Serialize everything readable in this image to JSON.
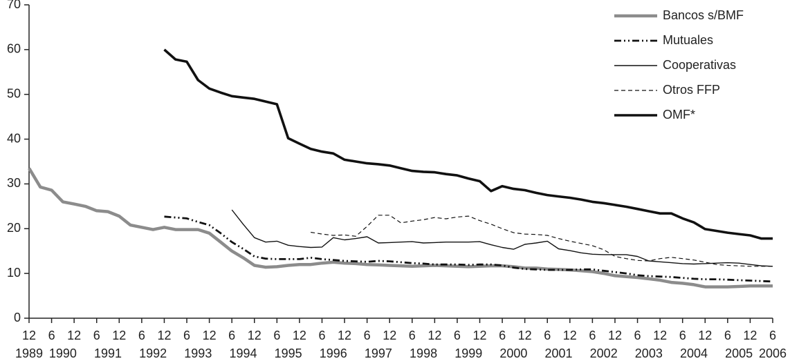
{
  "chart_data": {
    "type": "line",
    "categories": [
      "12",
      null,
      "6",
      null,
      "12",
      null,
      "6",
      null,
      "12",
      null,
      "6",
      null,
      "12",
      null,
      "6",
      null,
      "12",
      null,
      "6",
      null,
      "12",
      null,
      "6",
      null,
      "12",
      null,
      "6",
      null,
      "12",
      null,
      "6",
      null,
      "12",
      null,
      "6",
      null,
      "12",
      null,
      "6",
      null,
      "12",
      null,
      "6",
      null,
      "12",
      null,
      "6",
      null,
      "12",
      null,
      "6",
      null,
      "12",
      null,
      "6",
      null,
      "12",
      null,
      "6",
      null,
      "12",
      null,
      "6",
      null,
      "12",
      null,
      "6"
    ],
    "years": [
      "1989",
      "1990",
      "1991",
      "1992",
      "1993",
      "1994",
      "1995",
      "1996",
      "1997",
      "1998",
      "1999",
      "2000",
      "2001",
      "2002",
      "2003",
      "2004",
      "2005",
      "2006"
    ],
    "ylim": [
      0,
      70
    ],
    "yticks": [
      0,
      10,
      20,
      30,
      40,
      50,
      60,
      70
    ],
    "legend": "top-right",
    "series": [
      {
        "name": "Bancos s/BMF",
        "color": "#8c8c8c",
        "line_style": "solid",
        "values": [
          33.5,
          29.3,
          28.6,
          26,
          25.5,
          25,
          24,
          23.8,
          22.8,
          20.8,
          20.3,
          19.8,
          20.3,
          19.8,
          19.8,
          19.8,
          19,
          17,
          15,
          13.5,
          11.8,
          11.4,
          11.5,
          11.8,
          12,
          12,
          12.3,
          12.5,
          12.3,
          12.2,
          12,
          11.9,
          11.8,
          11.7,
          11.6,
          11.7,
          11.8,
          11.7,
          11.6,
          11.5,
          11.6,
          11.7,
          11.7,
          11.5,
          11.2,
          11.2,
          11,
          10.9,
          10.8,
          10.6,
          10.4,
          10,
          9.5,
          9.3,
          9.1,
          8.8,
          8.5,
          8,
          7.8,
          7.5,
          7,
          7,
          7,
          7.1,
          7.2,
          7.2,
          7.2
        ]
      },
      {
        "name": "Mutuales",
        "color": "#111111",
        "line_style": "dashdotdot",
        "values": [
          null,
          null,
          null,
          null,
          null,
          null,
          null,
          null,
          null,
          null,
          null,
          null,
          22.7,
          22.5,
          22.3,
          21.5,
          20.8,
          19,
          17,
          15.5,
          13.8,
          13.3,
          13.2,
          13.2,
          13.2,
          13.5,
          13.2,
          13,
          12.8,
          12.7,
          12.6,
          12.8,
          12.7,
          12.5,
          12.3,
          12.2,
          12,
          12,
          12,
          11.9,
          12,
          12,
          11.8,
          11.3,
          11,
          10.9,
          10.8,
          10.8,
          10.8,
          10.9,
          10.9,
          10.6,
          10.3,
          10,
          9.6,
          9.4,
          9.3,
          9.2,
          9,
          8.8,
          8.7,
          8.7,
          8.6,
          8.5,
          8.4,
          8.3,
          8.2
        ]
      },
      {
        "name": "Cooperativas",
        "color": "#111111",
        "line_style": "thin",
        "values": [
          null,
          null,
          null,
          null,
          null,
          null,
          null,
          null,
          null,
          null,
          null,
          null,
          null,
          null,
          null,
          null,
          null,
          null,
          24.2,
          21,
          18,
          17,
          17.2,
          16.3,
          16,
          15.8,
          15.9,
          18,
          17.5,
          17.8,
          18.2,
          16.8,
          16.9,
          17,
          17.1,
          16.8,
          16.9,
          17,
          17,
          17,
          17.1,
          16.4,
          15.8,
          15.4,
          16.5,
          16.8,
          17.2,
          15.5,
          15.1,
          14.6,
          14.3,
          14.2,
          14.2,
          14.2,
          13.8,
          12.8,
          12.6,
          12.4,
          12.2,
          12.1,
          12.2,
          12.3,
          12.4,
          12.3,
          12,
          11.7,
          11.6
        ]
      },
      {
        "name": "Otros FFP",
        "color": "#111111",
        "line_style": "dashed",
        "values": [
          null,
          null,
          null,
          null,
          null,
          null,
          null,
          null,
          null,
          null,
          null,
          null,
          null,
          null,
          null,
          null,
          null,
          null,
          null,
          null,
          null,
          null,
          null,
          null,
          null,
          19.2,
          18.8,
          18.5,
          18.6,
          18.3,
          20.5,
          23,
          23,
          21.3,
          21.7,
          22,
          22.5,
          22.2,
          22.6,
          22.8,
          21.8,
          21,
          20,
          19.1,
          18.8,
          18.7,
          18.5,
          17.8,
          17.2,
          16.7,
          16.2,
          15.3,
          13.8,
          13.3,
          12.9,
          12.8,
          13.3,
          13.6,
          13.3,
          13,
          12.5,
          12,
          11.8,
          11.7,
          11.6,
          11.6,
          11.6
        ]
      },
      {
        "name": "OMF*",
        "color": "#111111",
        "line_style": "thick",
        "values": [
          null,
          null,
          null,
          null,
          null,
          null,
          null,
          null,
          null,
          null,
          null,
          null,
          60,
          57.8,
          57.3,
          53.2,
          51.3,
          50.4,
          49.6,
          49.3,
          49,
          48.4,
          47.8,
          40.2,
          39,
          37.8,
          37.2,
          36.8,
          35.4,
          35,
          34.6,
          34.4,
          34.1,
          33.5,
          32.9,
          32.7,
          32.6,
          32.2,
          31.9,
          31.2,
          30.6,
          28.4,
          29.5,
          28.9,
          28.6,
          28,
          27.5,
          27.2,
          26.9,
          26.5,
          26,
          25.7,
          25.3,
          24.9,
          24.4,
          23.9,
          23.4,
          23.4,
          22.3,
          21.4,
          19.9,
          19.5,
          19.1,
          18.8,
          18.5,
          17.8,
          17.8
        ]
      }
    ]
  }
}
